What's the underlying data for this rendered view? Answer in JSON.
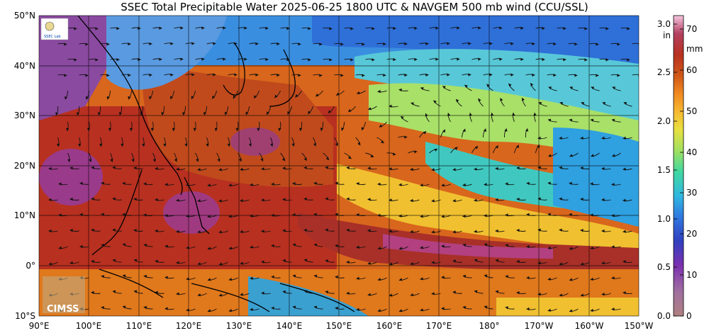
{
  "title": "SSEC Total Precipitable Water  2025-06-25 1800 UTC & NAVGEM 500 mb wind (CCU/SSL)",
  "lat_labels": [
    "50°N",
    "40°N",
    "30°N",
    "20°N",
    "10°N",
    "0°",
    "10°S"
  ],
  "lon_labels": [
    "90°E",
    "100°E",
    "110°E",
    "120°E",
    "130°E",
    "140°E",
    "150°E",
    "160°E",
    "170°E",
    "180°",
    "170°W",
    "160°W",
    "150°W"
  ],
  "colorbar": {
    "inch_unit": "in",
    "inch_ticks": [
      "3.0",
      "2.5",
      "2.0",
      "1.5",
      "1.0",
      "0.5",
      "0.0"
    ],
    "mm_unit": "mm",
    "mm_ticks": [
      "70",
      "60",
      "50",
      "40",
      "30",
      "20",
      "10",
      "0"
    ],
    "colors": [
      "#f7c6e0",
      "#b34060",
      "#b83020",
      "#d05818",
      "#f08a20",
      "#f7b830",
      "#e8e040",
      "#a0e060",
      "#40d8a0",
      "#30b8e0",
      "#2f78e0",
      "#3040c0",
      "#7a30b0",
      "#a070a0",
      "#b08080"
    ]
  },
  "logos": {
    "ssec_text": "SSEC Lab",
    "cimss_text": "CIMSS"
  }
}
